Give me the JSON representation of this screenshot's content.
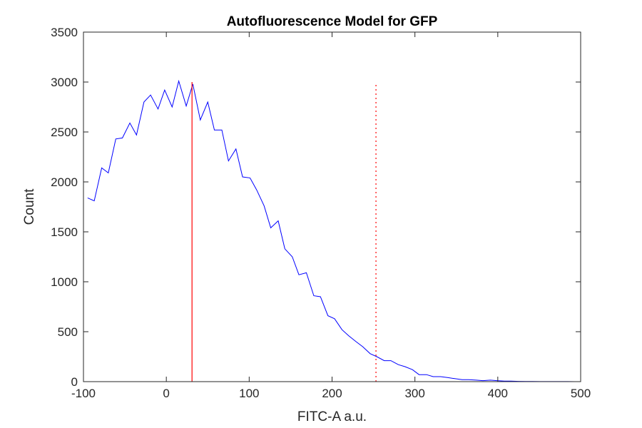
{
  "chart_data": {
    "type": "line",
    "title": "Autofluorescence Model for GFP",
    "xlabel": "FITC-A a.u.",
    "ylabel": "Count",
    "xlim": [
      -100,
      500
    ],
    "ylim": [
      0,
      3500
    ],
    "xticks": [
      -100,
      0,
      100,
      200,
      300,
      400,
      500
    ],
    "yticks": [
      0,
      500,
      1000,
      1500,
      2000,
      2500,
      3000,
      3500
    ],
    "grid": false,
    "legend": "none",
    "series": [
      {
        "color": "#0000ff",
        "x": [
          -95,
          -87,
          -78,
          -70,
          -61,
          -53,
          -44,
          -36,
          -27,
          -19,
          -10,
          -2,
          7,
          15,
          24,
          32,
          41,
          50,
          58,
          67,
          75,
          84,
          92,
          101,
          109,
          118,
          126,
          135,
          143,
          152,
          160,
          169,
          178,
          186,
          195,
          203,
          212,
          220,
          229,
          237,
          246,
          254,
          263,
          271,
          280,
          288,
          297,
          305,
          314,
          322,
          331,
          340,
          348,
          357,
          365,
          374,
          382,
          391,
          399,
          408,
          416,
          425,
          434,
          442,
          451,
          459,
          468,
          476,
          485,
          493
        ],
        "y": [
          1840,
          1810,
          2140,
          2090,
          2430,
          2440,
          2590,
          2470,
          2800,
          2870,
          2730,
          2920,
          2750,
          3010,
          2760,
          2980,
          2620,
          2800,
          2520,
          2520,
          2210,
          2330,
          2050,
          2040,
          1920,
          1760,
          1540,
          1610,
          1330,
          1250,
          1070,
          1090,
          860,
          850,
          660,
          630,
          520,
          460,
          400,
          350,
          280,
          250,
          210,
          210,
          170,
          150,
          120,
          70,
          70,
          50,
          50,
          40,
          30,
          20,
          20,
          15,
          10,
          15,
          10,
          5,
          5,
          3,
          2,
          2,
          1,
          1,
          1,
          1,
          1,
          0
        ]
      }
    ],
    "vlines": [
      {
        "x": 31,
        "y0": 0,
        "y1": 3000,
        "color": "#ff0000",
        "style": "solid"
      },
      {
        "x": 253,
        "y0": 0,
        "y1": 3000,
        "color": "#ff0000",
        "style": "dotted"
      }
    ]
  }
}
